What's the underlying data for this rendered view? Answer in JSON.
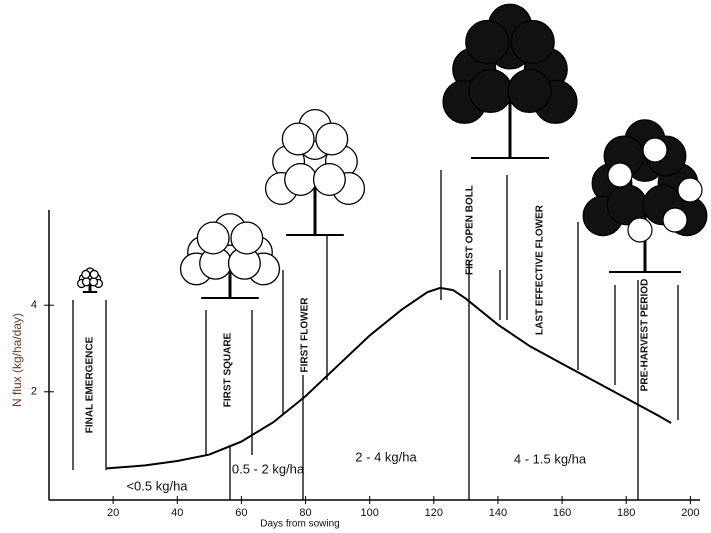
{
  "chart_data": {
    "type": "line",
    "x_label": "Days from sowing",
    "y_label": "N flux (kg/ha/day)",
    "x": [
      18,
      30,
      40,
      50,
      60,
      70,
      80,
      90,
      100,
      110,
      118,
      122,
      126,
      130,
      140,
      150,
      160,
      170,
      180,
      190,
      194
    ],
    "values": [
      0.23,
      0.3,
      0.4,
      0.55,
      0.85,
      1.3,
      1.9,
      2.6,
      3.3,
      3.9,
      4.3,
      4.4,
      4.35,
      4.15,
      3.55,
      3.05,
      2.65,
      2.25,
      1.85,
      1.45,
      1.28
    ],
    "color": "#000000",
    "xlim": [
      0,
      203
    ],
    "xticks": [
      20,
      40,
      60,
      80,
      100,
      120,
      140,
      160,
      180,
      200
    ],
    "ylim": [
      -0.5,
      6.2
    ],
    "yticks": [
      2,
      4
    ],
    "stages": [
      "FINAL EMERGENCE",
      "FIRST SQUARE",
      "FIRST FLOWER",
      "FIRST OPEN BOLL",
      "LAST EFFECTIVE FLOWER",
      "PRE-HARVEST PERIOD"
    ],
    "periods": [
      "<0.5 kg/ha",
      "0.5 - 2 kg/ha",
      "2 - 4 kg/ha",
      "4 - 1.5 kg/ha"
    ]
  }
}
